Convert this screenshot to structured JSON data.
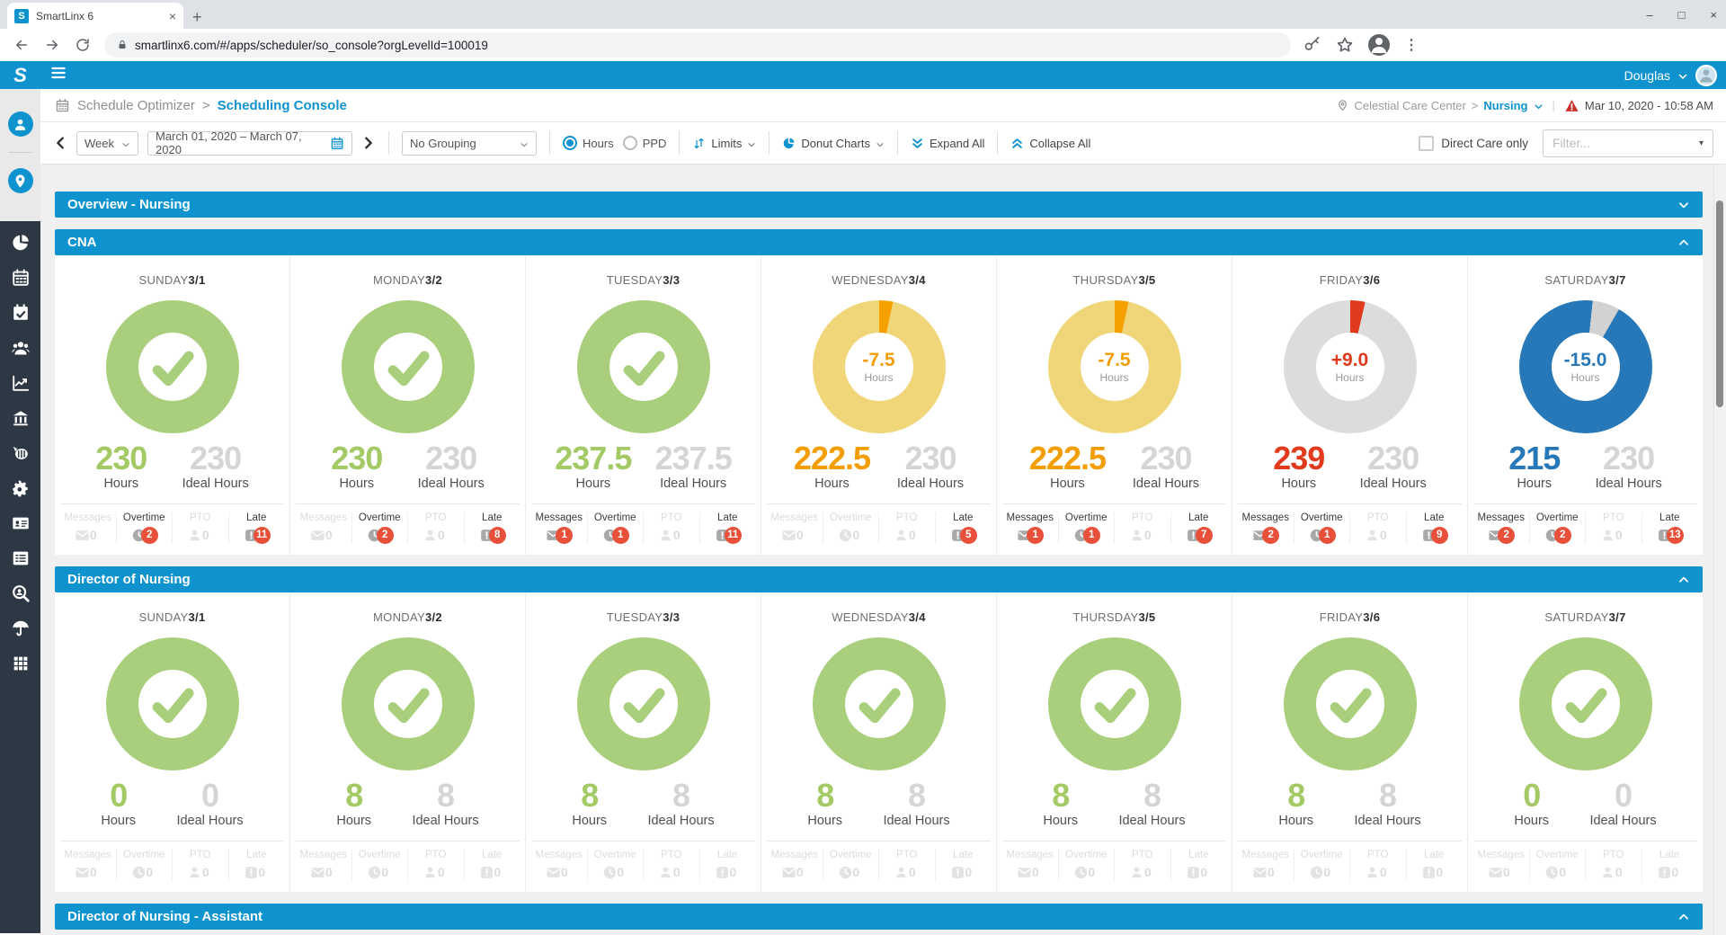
{
  "browser": {
    "favicon_letter": "S",
    "tab_title": "SmartLinx 6",
    "url": "smartlinx6.com/#/apps/scheduler/so_console?orgLevelId=100019"
  },
  "appbar": {
    "logo_letter": "S",
    "user": "Douglas"
  },
  "breadcrumb": {
    "parent": "Schedule Optimizer",
    "sep": ">",
    "current": "Scheduling Console"
  },
  "context": {
    "facility": "Celestial Care Center",
    "sep": ">",
    "unit": "Nursing",
    "bar": "|",
    "datetime": "Mar 10, 2020 - 10:58 AM"
  },
  "toolbar": {
    "range_mode": "Week",
    "date_range": "March 01, 2020 – March 07, 2020",
    "grouping": "No Grouping",
    "radio_hours": "Hours",
    "radio_ppd": "PPD",
    "limits": "Limits",
    "donut_charts": "Donut Charts",
    "expand_all": "Expand All",
    "collapse_all": "Collapse All",
    "direct_care": "Direct Care only",
    "filter_placeholder": "Filter..."
  },
  "labels": {
    "hours": "Hours",
    "ideal_hours": "Ideal Hours",
    "messages": "Messages",
    "overtime": "Overtime",
    "pto": "PTO",
    "late": "Late"
  },
  "colors": {
    "brand_blue": "#0e93cf",
    "badge_red": "#e8503a",
    "themes": {
      "green": {
        "ring": "#a9cf7c",
        "wedge": "#a9cf7c",
        "text": "#a4ca66"
      },
      "yellow": {
        "ring": "#f0d678",
        "wedge": "#f6a000",
        "text": "#f39d00"
      },
      "grayRed": {
        "ring": "#dcdcdc",
        "wedge": "#e23a1c",
        "text": "#e23a1c"
      },
      "blue": {
        "ring": "#2678b8",
        "wedge": "#d2d2d2",
        "text": "#2678b8"
      }
    }
  },
  "sidebar": {
    "items": [
      "user-profile",
      "scheduling-console",
      "pie-chart",
      "calendar",
      "calendar-check",
      "people",
      "line-chart",
      "bank",
      "drum",
      "gears",
      "id-card",
      "list",
      "person-search",
      "umbrella",
      "apps-grid"
    ]
  },
  "chart_data": {
    "note": "see sections[].cards for donut values"
  },
  "sections": [
    {
      "title": "Overview - Nursing",
      "expanded": false,
      "cards": []
    },
    {
      "title": "CNA",
      "expanded": true,
      "cards": [
        {
          "day": "SUNDAY",
          "date": "3/1",
          "donut": "check",
          "theme": "green",
          "delta": "",
          "wedge_start": 0,
          "wedge_deg": 0,
          "hours": "230",
          "ideal": "230",
          "hours_theme": "green",
          "badges": {
            "messages": 0,
            "overtime": 2,
            "pto": 0,
            "late": 11
          }
        },
        {
          "day": "MONDAY",
          "date": "3/2",
          "donut": "check",
          "theme": "green",
          "delta": "",
          "wedge_start": 0,
          "wedge_deg": 0,
          "hours": "230",
          "ideal": "230",
          "hours_theme": "green",
          "badges": {
            "messages": 0,
            "overtime": 2,
            "pto": 0,
            "late": 8
          }
        },
        {
          "day": "TUESDAY",
          "date": "3/3",
          "donut": "check",
          "theme": "green",
          "delta": "",
          "wedge_start": 0,
          "wedge_deg": 0,
          "hours": "237.5",
          "ideal": "237.5",
          "hours_theme": "green",
          "badges": {
            "messages": 1,
            "overtime": 1,
            "pto": 0,
            "late": 11
          }
        },
        {
          "day": "WEDNESDAY",
          "date": "3/4",
          "donut": "wedge",
          "theme": "yellow",
          "delta": "-7.5",
          "wedge_start": 0,
          "wedge_deg": 12,
          "hours": "222.5",
          "ideal": "230",
          "hours_theme": "yellow",
          "badges": {
            "messages": 0,
            "overtime": 0,
            "pto": 0,
            "late": 5
          }
        },
        {
          "day": "THURSDAY",
          "date": "3/5",
          "donut": "wedge",
          "theme": "yellow",
          "delta": "-7.5",
          "wedge_start": 0,
          "wedge_deg": 12,
          "hours": "222.5",
          "ideal": "230",
          "hours_theme": "yellow",
          "badges": {
            "messages": 1,
            "overtime": 1,
            "pto": 0,
            "late": 7
          }
        },
        {
          "day": "FRIDAY",
          "date": "3/6",
          "donut": "wedge",
          "theme": "grayRed",
          "delta": "+9.0",
          "wedge_start": 0,
          "wedge_deg": 13,
          "hours": "239",
          "ideal": "230",
          "hours_theme": "grayRed",
          "badges": {
            "messages": 2,
            "overtime": 1,
            "pto": 0,
            "late": 9
          }
        },
        {
          "day": "SATURDAY",
          "date": "3/7",
          "donut": "wedge",
          "theme": "blue",
          "delta": "-15.0",
          "wedge_start": 6,
          "wedge_deg": 24,
          "hours": "215",
          "ideal": "230",
          "hours_theme": "blue",
          "badges": {
            "messages": 2,
            "overtime": 2,
            "pto": 0,
            "late": 13
          }
        }
      ]
    },
    {
      "title": "Director of Nursing",
      "expanded": true,
      "cards": [
        {
          "day": "SUNDAY",
          "date": "3/1",
          "donut": "check",
          "theme": "green",
          "delta": "",
          "wedge_start": 0,
          "wedge_deg": 0,
          "hours": "0",
          "ideal": "0",
          "hours_theme": "green",
          "badges": {
            "messages": 0,
            "overtime": 0,
            "pto": 0,
            "late": 0
          }
        },
        {
          "day": "MONDAY",
          "date": "3/2",
          "donut": "check",
          "theme": "green",
          "delta": "",
          "wedge_start": 0,
          "wedge_deg": 0,
          "hours": "8",
          "ideal": "8",
          "hours_theme": "green",
          "badges": {
            "messages": 0,
            "overtime": 0,
            "pto": 0,
            "late": 0
          }
        },
        {
          "day": "TUESDAY",
          "date": "3/3",
          "donut": "check",
          "theme": "green",
          "delta": "",
          "wedge_start": 0,
          "wedge_deg": 0,
          "hours": "8",
          "ideal": "8",
          "hours_theme": "green",
          "badges": {
            "messages": 0,
            "overtime": 0,
            "pto": 0,
            "late": 0
          }
        },
        {
          "day": "WEDNESDAY",
          "date": "3/4",
          "donut": "check",
          "theme": "green",
          "delta": "",
          "wedge_start": 0,
          "wedge_deg": 0,
          "hours": "8",
          "ideal": "8",
          "hours_theme": "green",
          "badges": {
            "messages": 0,
            "overtime": 0,
            "pto": 0,
            "late": 0
          }
        },
        {
          "day": "THURSDAY",
          "date": "3/5",
          "donut": "check",
          "theme": "green",
          "delta": "",
          "wedge_start": 0,
          "wedge_deg": 0,
          "hours": "8",
          "ideal": "8",
          "hours_theme": "green",
          "badges": {
            "messages": 0,
            "overtime": 0,
            "pto": 0,
            "late": 0
          }
        },
        {
          "day": "FRIDAY",
          "date": "3/6",
          "donut": "check",
          "theme": "green",
          "delta": "",
          "wedge_start": 0,
          "wedge_deg": 0,
          "hours": "8",
          "ideal": "8",
          "hours_theme": "green",
          "badges": {
            "messages": 0,
            "overtime": 0,
            "pto": 0,
            "late": 0
          }
        },
        {
          "day": "SATURDAY",
          "date": "3/7",
          "donut": "check",
          "theme": "green",
          "delta": "",
          "wedge_start": 0,
          "wedge_deg": 0,
          "hours": "0",
          "ideal": "0",
          "hours_theme": "green",
          "badges": {
            "messages": 0,
            "overtime": 0,
            "pto": 0,
            "late": 0
          }
        }
      ]
    },
    {
      "title": "Director of Nursing - Assistant",
      "expanded": true,
      "cards": []
    }
  ]
}
